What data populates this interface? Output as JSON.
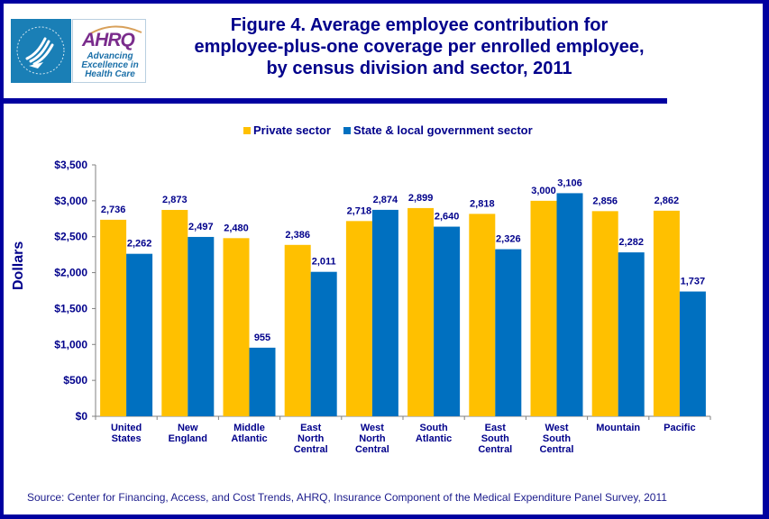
{
  "header": {
    "logo_hhs_alt": "HHS eagle logo",
    "logo_ahrq_mark": "AHRQ",
    "logo_ahrq_tagline": [
      "Advancing",
      "Excellence in",
      "Health Care"
    ],
    "title_lines": [
      "Figure 4. Average employee contribution for",
      "employee-plus-one coverage per enrolled employee,",
      "by census division and sector, 2011"
    ]
  },
  "colors": {
    "frame": "#0000a0",
    "title": "#00008b",
    "private": "#ffc000",
    "government": "#0070c0"
  },
  "chart_data": {
    "type": "bar",
    "title": "Figure 4. Average employee contribution for employee-plus-one coverage per enrolled employee, by census division and sector, 2011",
    "xlabel": "",
    "ylabel": "Dollars",
    "ylim": [
      0,
      3500
    ],
    "yticks": [
      0,
      500,
      1000,
      1500,
      2000,
      2500,
      3000,
      3500
    ],
    "ytick_labels": [
      "$0",
      "$500",
      "$1,000",
      "$1,500",
      "$2,000",
      "$2,500",
      "$3,000",
      "$3,500"
    ],
    "grid": false,
    "legend_position": "top-center",
    "categories": [
      [
        "United",
        "States"
      ],
      [
        "New",
        "England"
      ],
      [
        "Middle",
        "Atlantic"
      ],
      [
        "East",
        "North",
        "Central"
      ],
      [
        "West",
        "North",
        "Central"
      ],
      [
        "South",
        "Atlantic"
      ],
      [
        "East",
        "South",
        "Central"
      ],
      [
        "West",
        "South",
        "Central"
      ],
      [
        "Mountain"
      ],
      [
        "Pacific"
      ]
    ],
    "series": [
      {
        "name": "Private sector",
        "color": "#ffc000",
        "values": [
          2736,
          2873,
          2480,
          2386,
          2718,
          2899,
          2818,
          3000,
          2856,
          2862
        ],
        "labels": [
          "2,736",
          "2,873",
          "2,480",
          "2,386",
          "2,718",
          "2,899",
          "2,818",
          "3,000",
          "2,856",
          "2,862"
        ]
      },
      {
        "name": "State & local government sector",
        "color": "#0070c0",
        "values": [
          2262,
          2497,
          955,
          2011,
          2874,
          2640,
          2326,
          3106,
          2282,
          1737
        ],
        "labels": [
          "2,262",
          "2,497",
          "955",
          "2,011",
          "2,874",
          "2,640",
          "2,326",
          "3,106",
          "2,282",
          "1,737"
        ]
      }
    ]
  },
  "source": "Source: Center for Financing, Access, and Cost Trends, AHRQ, Insurance Component of the Medical Expenditure Panel Survey, 2011"
}
